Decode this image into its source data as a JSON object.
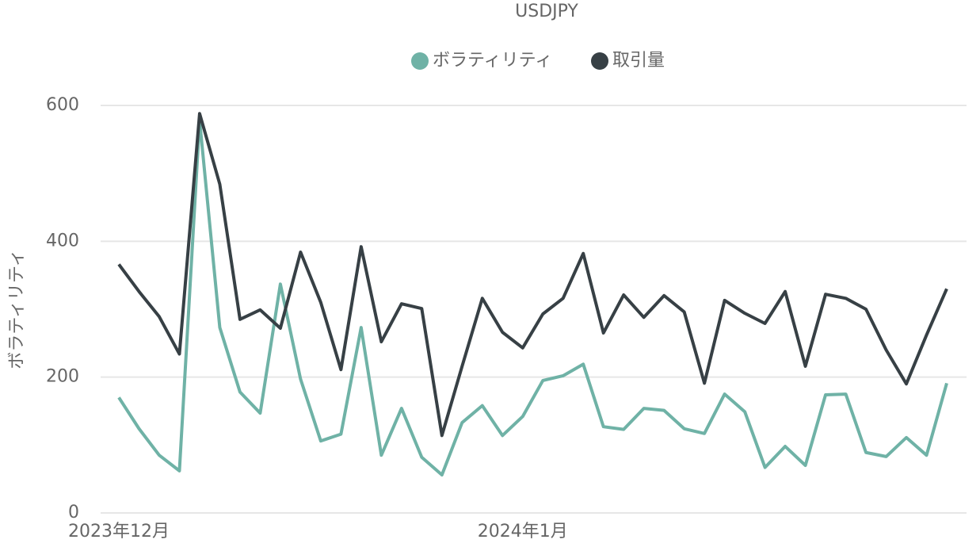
{
  "chart_data": {
    "type": "line",
    "title": "USDJPY",
    "y_label": "ボラティリティ",
    "categories": [
      "2023年12月",
      null,
      null,
      null,
      null,
      null,
      null,
      null,
      null,
      null,
      null,
      null,
      null,
      null,
      null,
      null,
      null,
      null,
      null,
      null,
      "2024年1月",
      null,
      null,
      null,
      null,
      null,
      null,
      null,
      null,
      null,
      null,
      null,
      null,
      null,
      null,
      null,
      null,
      null,
      null,
      null,
      null,
      null
    ],
    "series": [
      {
        "name": "ボラティリティ",
        "color": "#6fb2a6",
        "values": [
          170,
          124,
          85,
          62,
          578,
          273,
          178,
          147,
          337,
          197,
          106,
          116,
          273,
          85,
          154,
          82,
          56,
          133,
          158,
          114,
          142,
          195,
          202,
          219,
          127,
          123,
          154,
          151,
          124,
          117,
          175,
          149,
          67,
          98,
          70,
          174,
          175,
          89,
          83,
          111,
          85,
          191
        ]
      },
      {
        "name": "取引量",
        "color": "#374045",
        "values": [
          366,
          326,
          289,
          234,
          588,
          484,
          285,
          299,
          272,
          384,
          310,
          211,
          392,
          252,
          308,
          301,
          114,
          216,
          316,
          266,
          243,
          293,
          316,
          382,
          265,
          321,
          288,
          320,
          296,
          191,
          313,
          294,
          279,
          326,
          216,
          322,
          316,
          300,
          240,
          190,
          262,
          330
        ]
      }
    ],
    "ylim": [
      0,
      600
    ],
    "yticks": [
      0,
      200,
      400,
      600
    ],
    "grid": true
  }
}
